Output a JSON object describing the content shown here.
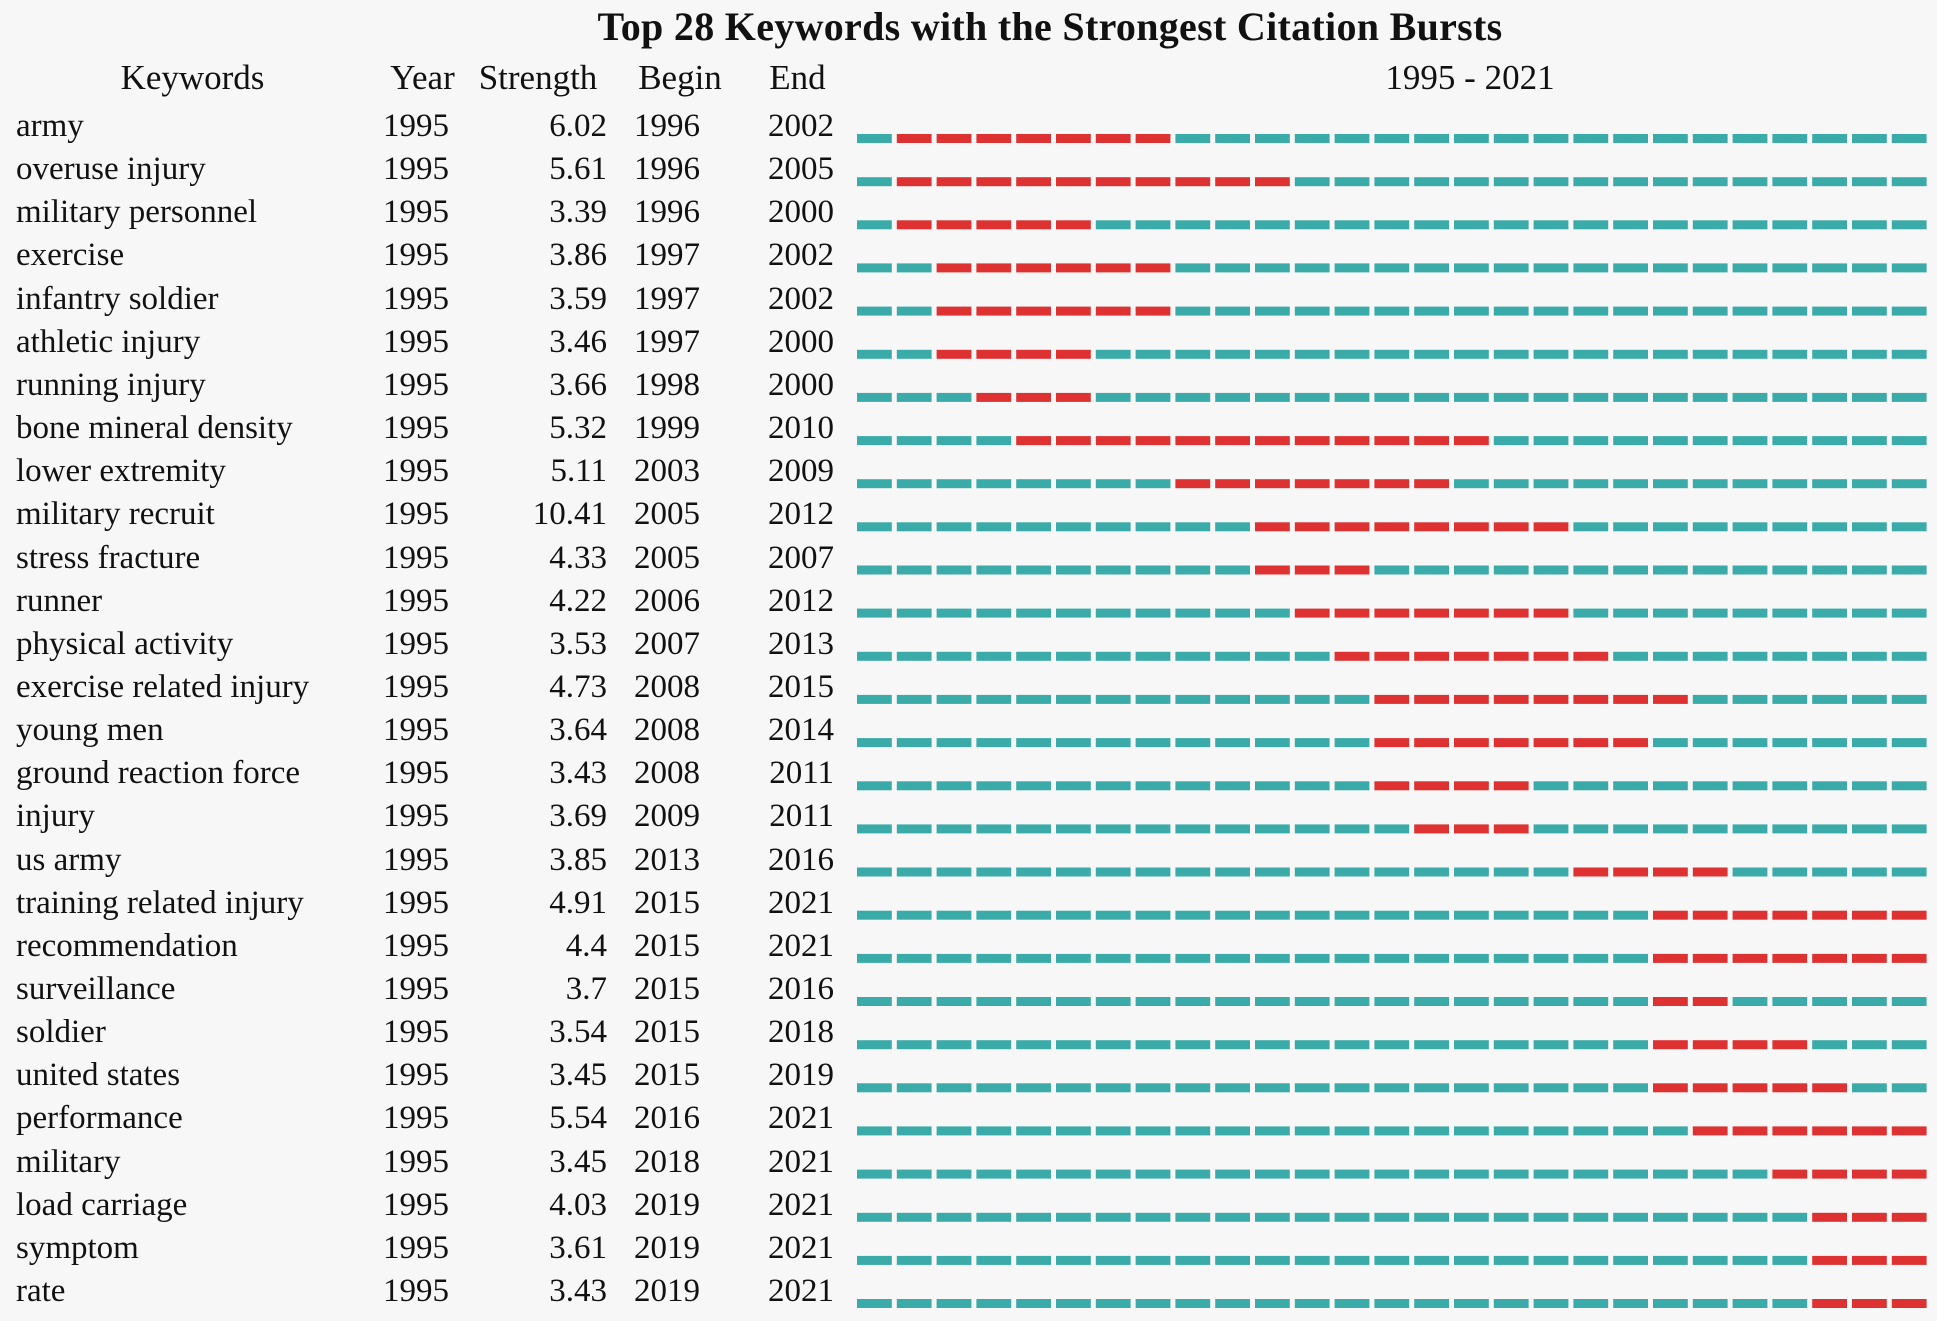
{
  "chart_data": {
    "type": "table",
    "title": "Top 28 Keywords with the Strongest Citation Bursts",
    "columns": [
      "Keywords",
      "Year",
      "Strength",
      "Begin",
      "End"
    ],
    "range_label": "1995 - 2021",
    "range": [
      1995,
      2021
    ],
    "colors": {
      "background": "#3aaba9",
      "burst": "#de3232"
    },
    "rows": [
      {
        "keyword": "army",
        "year": "1995",
        "strength": "6.02",
        "begin": "1996",
        "end": "2002"
      },
      {
        "keyword": "overuse injury",
        "year": "1995",
        "strength": "5.61",
        "begin": "1996",
        "end": "2005"
      },
      {
        "keyword": "military personnel",
        "year": "1995",
        "strength": "3.39",
        "begin": "1996",
        "end": "2000"
      },
      {
        "keyword": "exercise",
        "year": "1995",
        "strength": "3.86",
        "begin": "1997",
        "end": "2002"
      },
      {
        "keyword": "infantry soldier",
        "year": "1995",
        "strength": "3.59",
        "begin": "1997",
        "end": "2002"
      },
      {
        "keyword": "athletic injury",
        "year": "1995",
        "strength": "3.46",
        "begin": "1997",
        "end": "2000"
      },
      {
        "keyword": "running injury",
        "year": "1995",
        "strength": "3.66",
        "begin": "1998",
        "end": "2000"
      },
      {
        "keyword": "bone mineral density",
        "year": "1995",
        "strength": "5.32",
        "begin": "1999",
        "end": "2010"
      },
      {
        "keyword": "lower extremity",
        "year": "1995",
        "strength": "5.11",
        "begin": "2003",
        "end": "2009"
      },
      {
        "keyword": "military recruit",
        "year": "1995",
        "strength": "10.41",
        "begin": "2005",
        "end": "2012"
      },
      {
        "keyword": "stress fracture",
        "year": "1995",
        "strength": "4.33",
        "begin": "2005",
        "end": "2007"
      },
      {
        "keyword": "runner",
        "year": "1995",
        "strength": "4.22",
        "begin": "2006",
        "end": "2012"
      },
      {
        "keyword": "physical activity",
        "year": "1995",
        "strength": "3.53",
        "begin": "2007",
        "end": "2013"
      },
      {
        "keyword": "exercise related injury",
        "year": "1995",
        "strength": "4.73",
        "begin": "2008",
        "end": "2015"
      },
      {
        "keyword": "young men",
        "year": "1995",
        "strength": "3.64",
        "begin": "2008",
        "end": "2014"
      },
      {
        "keyword": "ground reaction force",
        "year": "1995",
        "strength": "3.43",
        "begin": "2008",
        "end": "2011"
      },
      {
        "keyword": "injury",
        "year": "1995",
        "strength": "3.69",
        "begin": "2009",
        "end": "2011"
      },
      {
        "keyword": "us army",
        "year": "1995",
        "strength": "3.85",
        "begin": "2013",
        "end": "2016"
      },
      {
        "keyword": "training related injury",
        "year": "1995",
        "strength": "4.91",
        "begin": "2015",
        "end": "2021"
      },
      {
        "keyword": "recommendation",
        "year": "1995",
        "strength": "4.4",
        "begin": "2015",
        "end": "2021"
      },
      {
        "keyword": "surveillance",
        "year": "1995",
        "strength": "3.7",
        "begin": "2015",
        "end": "2016"
      },
      {
        "keyword": "soldier",
        "year": "1995",
        "strength": "3.54",
        "begin": "2015",
        "end": "2018"
      },
      {
        "keyword": "united states",
        "year": "1995",
        "strength": "3.45",
        "begin": "2015",
        "end": "2019"
      },
      {
        "keyword": "performance",
        "year": "1995",
        "strength": "5.54",
        "begin": "2016",
        "end": "2021"
      },
      {
        "keyword": "military",
        "year": "1995",
        "strength": "3.45",
        "begin": "2018",
        "end": "2021"
      },
      {
        "keyword": "load carriage",
        "year": "1995",
        "strength": "4.03",
        "begin": "2019",
        "end": "2021"
      },
      {
        "keyword": "symptom",
        "year": "1995",
        "strength": "3.61",
        "begin": "2019",
        "end": "2021"
      },
      {
        "keyword": "rate",
        "year": "1995",
        "strength": "3.43",
        "begin": "2019",
        "end": "2021"
      }
    ]
  }
}
